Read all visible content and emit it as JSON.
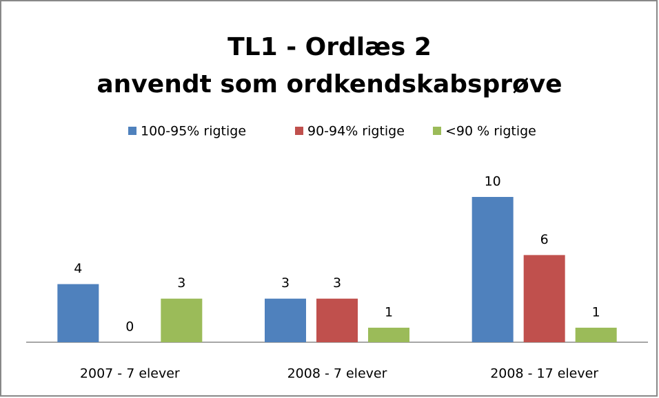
{
  "chart_data": {
    "type": "bar",
    "title": [
      "TL1 - Ordlæs 2",
      "anvendt som ordkendskabsprøve"
    ],
    "categories": [
      "2007 - 7 elever",
      "2008 - 7 elever",
      "2008 - 17 elever"
    ],
    "series": [
      {
        "name": "100-95%  rigtige",
        "color": "#4f81bd",
        "values": [
          4,
          3,
          10
        ]
      },
      {
        "name": "90-94% rigtige",
        "color": "#c0504d",
        "values": [
          0,
          3,
          6
        ]
      },
      {
        "name": "<90 % rigtige",
        "color": "#9bbb59",
        "values": [
          3,
          1,
          1
        ]
      }
    ],
    "legend": "top"
  }
}
